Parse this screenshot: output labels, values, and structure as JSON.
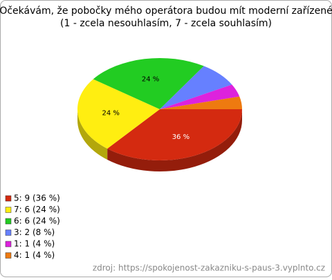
{
  "chart_data": {
    "type": "pie",
    "title": [
      "Očekávám, že pobočky mého operátora budou mít moderní zařízené",
      "(1 - zcela nesouhlasím, 7 - zcela souhlasím)"
    ],
    "categories": [
      "5: 9 (36 %)",
      "7: 6 (24 %)",
      "6: 6 (24 %)",
      "3: 2 (8 %)",
      "1: 1 (4 %)",
      "4: 1 (4 %)"
    ],
    "values": [
      36,
      24,
      24,
      8,
      4,
      4
    ],
    "value_labels": [
      "36 %",
      "24 %",
      "24 %",
      null,
      null,
      null
    ],
    "colors": [
      "#d42a10",
      "#ffee11",
      "#22cc22",
      "#6680ff",
      "#dd22dd",
      "#ee7a10"
    ],
    "source": "zdroj: https://spokojenost-zakazniku-s-paus-3.vyplnto.cz"
  }
}
